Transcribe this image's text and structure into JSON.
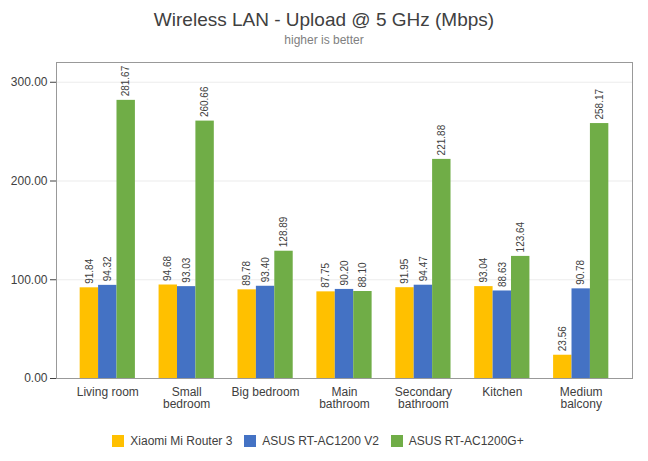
{
  "chart_data": {
    "type": "bar",
    "title": "Wireless LAN - Upload @ 5 GHz (Mbps)",
    "subtitle": "higher is better",
    "categories": [
      "Living room",
      "Small\nbedroom",
      "Big bedroom",
      "Main\nbathroom",
      "Secondary\nbathroom",
      "Kitchen",
      "Medium\nbalcony"
    ],
    "series": [
      {
        "name": "Xiaomi Mi Router 3",
        "color": "#FFC000",
        "values": [
          91.84,
          94.68,
          89.78,
          87.75,
          91.95,
          93.04,
          23.56
        ],
        "value_labels": [
          "91.84",
          "94.68",
          "89.78",
          "87.75",
          "91.95",
          "93.04",
          "23.56"
        ]
      },
      {
        "name": "ASUS RT-AC1200 V2",
        "color": "#4472C4",
        "values": [
          94.32,
          93.03,
          93.4,
          90.2,
          94.47,
          88.63,
          90.78
        ],
        "value_labels": [
          "94.32",
          "93.03",
          "93.40",
          "90.20",
          "94.47",
          "88.63",
          "90.78"
        ]
      },
      {
        "name": "ASUS RT-AC1200G+",
        "color": "#70AD47",
        "values": [
          281.67,
          260.66,
          128.89,
          88.1,
          221.88,
          123.64,
          258.17
        ],
        "value_labels": [
          "281.67",
          "260.66",
          "128.89",
          "88.10",
          "221.88",
          "123.64",
          "258.17"
        ]
      }
    ],
    "ylim": [
      0,
      320
    ],
    "yticks": [
      {
        "value": 0,
        "label": "0.00"
      },
      {
        "value": 100,
        "label": "100.00"
      },
      {
        "value": 200,
        "label": "200.00"
      },
      {
        "value": 300,
        "label": "300.00"
      }
    ],
    "grid": true,
    "legend": "bottom",
    "data_labels": true
  }
}
